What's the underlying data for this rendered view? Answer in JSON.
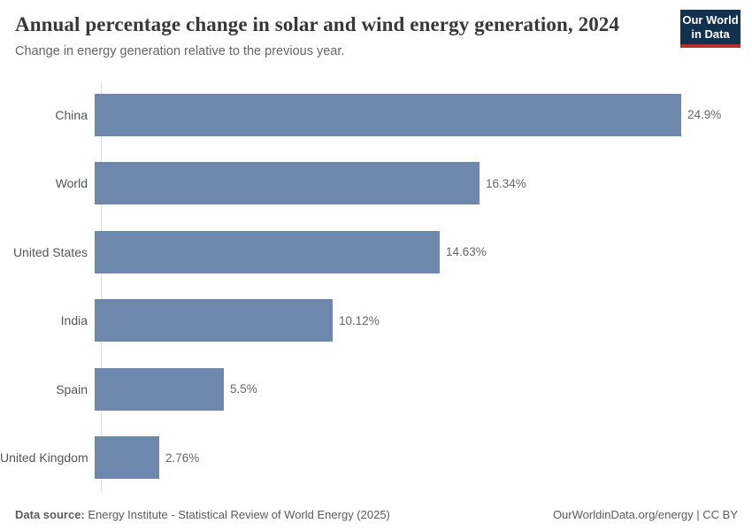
{
  "header": {
    "title": "Annual percentage change in solar and wind energy generation, 2024",
    "subtitle": "Change in energy generation relative to the previous year."
  },
  "logo": {
    "line1": "Our World",
    "line2": "in Data",
    "background_color": "#12304f",
    "accent_color": "#b5322a"
  },
  "chart_data": {
    "type": "bar",
    "orientation": "horizontal",
    "title": "Annual percentage change in solar and wind energy generation, 2024",
    "subtitle": "Change in energy generation relative to the previous year.",
    "categories": [
      "China",
      "World",
      "United States",
      "India",
      "Spain",
      "United Kingdom"
    ],
    "values": [
      24.9,
      16.34,
      14.63,
      10.12,
      5.5,
      2.76
    ],
    "value_labels": [
      "24.9%",
      "16.34%",
      "14.63%",
      "10.12%",
      "5.5%",
      "2.76%"
    ],
    "unit": "%",
    "xlabel": "",
    "ylabel": "",
    "xlim": [
      0,
      24.9
    ],
    "grid": false,
    "legend": "none",
    "bar_color": "#6e87ac",
    "axis_color": "#dcdcdc"
  },
  "footer": {
    "datasource_label": "Data source:",
    "datasource_text": " Energy Institute - Statistical Review of World Energy (2025)",
    "credit": "OurWorldinData.org/energy | CC BY"
  }
}
